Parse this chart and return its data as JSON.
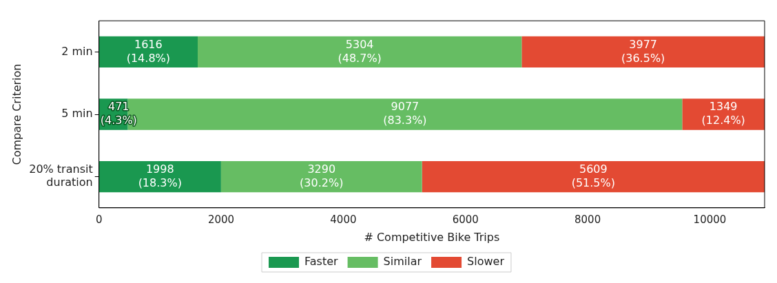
{
  "chart_data": {
    "type": "bar",
    "orientation": "horizontal",
    "stacked": true,
    "xlabel": "# Competitive Bike Trips",
    "ylabel": "Compare Criterion",
    "categories": [
      "2 min",
      "5 min",
      "20% transit duration"
    ],
    "xlim": [
      0,
      10897
    ],
    "xticks": [
      0,
      2000,
      4000,
      6000,
      8000,
      10000
    ],
    "grid": false,
    "legend": "bottom",
    "series": [
      {
        "name": "Faster",
        "color": "#1a9850",
        "values": [
          1616,
          471,
          1998
        ],
        "value_labels": [
          "1616\n(14.8%)",
          "471\n(4.3%)",
          "1998\n(18.3%)"
        ]
      },
      {
        "name": "Similar",
        "color": "#66bd63",
        "values": [
          5304,
          9077,
          3290
        ],
        "value_labels": [
          "5304\n(48.7%)",
          "9077\n(83.3%)",
          "3290\n(30.2%)"
        ]
      },
      {
        "name": "Slower",
        "color": "#e34a33",
        "values": [
          3977,
          1349,
          5609
        ],
        "value_labels": [
          "3977\n(36.5%)",
          "1349\n(12.4%)",
          "5609\n(51.5%)"
        ]
      }
    ]
  }
}
